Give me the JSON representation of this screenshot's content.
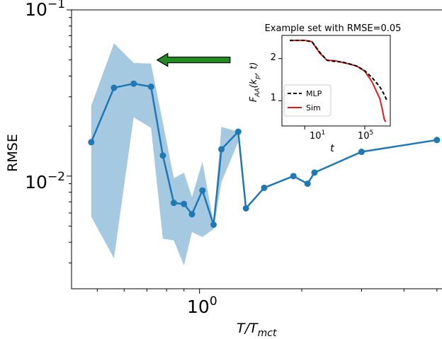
{
  "chart_data": [
    {
      "type": "line",
      "title": "",
      "xlabel_parts": {
        "main": "T/T",
        "sub": "mct"
      },
      "ylabel": "RMSE",
      "xscale": "log",
      "yscale": "log",
      "xlim": [
        0.42,
        5.2
      ],
      "ylim": [
        0.0021,
        0.1
      ],
      "grid": false,
      "x_ticks": [
        {
          "base": "10",
          "exp": "0",
          "value": 1
        }
      ],
      "y_ticks": [
        {
          "base": "10",
          "exp": "−1",
          "value": 0.1
        },
        {
          "base": "10",
          "exp": "−2",
          "value": 0.01
        }
      ],
      "colors": {
        "line": "#1f77b4",
        "band": "#a6c9e2",
        "arrow": "#228b22"
      },
      "series": [
        {
          "x": [
            0.48,
            0.56,
            0.64,
            0.72,
            0.78,
            0.84,
            0.9,
            0.95,
            1.02,
            1.1,
            1.16,
            1.3,
            1.37,
            1.55,
            1.89,
            2.08,
            2.18,
            3.0,
            5.0
          ],
          "y": [
            0.016,
            0.034,
            0.036,
            0.0345,
            0.0133,
            0.0069,
            0.0068,
            0.0059,
            0.0082,
            0.0051,
            0.0145,
            0.0185,
            0.0064,
            0.0085,
            0.01,
            0.009,
            0.0105,
            0.014,
            0.0165
          ]
        }
      ],
      "band": {
        "x": [
          0.48,
          0.56,
          0.64,
          0.72,
          0.78,
          0.84,
          0.9,
          0.95,
          1.02,
          1.1,
          1.16,
          1.3
        ],
        "lower": [
          0.0057,
          0.0032,
          0.0226,
          0.0195,
          0.0042,
          0.0041,
          0.0029,
          0.0046,
          0.0043,
          0.0048,
          0.0092,
          0.016
        ],
        "upper": [
          0.0265,
          0.063,
          0.048,
          0.0475,
          0.021,
          0.0097,
          0.0105,
          0.0075,
          0.0122,
          0.0052,
          0.0198,
          0.0185
        ]
      },
      "arrow": {
        "from": {
          "x": 1.23,
          "y": 0.05
        },
        "to": {
          "x": 0.75,
          "y": 0.05
        }
      }
    },
    {
      "type": "line",
      "title": "Example set with RMSE=0.05",
      "xlabel": "t",
      "ylabel_parts": {
        "main": "F",
        "sub": "AA",
        "arg": "(k",
        "argsub": "p",
        "argend": ", t)"
      },
      "xscale": "log",
      "xlim": [
        0.3,
        5000000.0
      ],
      "ylim": [
        0.4,
        2.55
      ],
      "x_ticks": [
        {
          "base": "10",
          "exp": "1",
          "value": 10
        },
        {
          "base": "10",
          "exp": "5",
          "value": 100000
        }
      ],
      "y_ticks": [
        {
          "label": "1",
          "value": 1
        },
        {
          "label": "2",
          "value": 2
        }
      ],
      "legend": {
        "position": "lower-left"
      },
      "series": [
        {
          "name": "MLP",
          "style": "dashed",
          "color": "#000000",
          "t": [
            1,
            10,
            30,
            100,
            300,
            1000,
            3000,
            10000,
            30000,
            100000,
            300000,
            1000000,
            2000000,
            3000000
          ],
          "y": [
            2.43,
            2.43,
            2.4,
            2.15,
            1.96,
            1.93,
            1.92,
            1.87,
            1.82,
            1.71,
            1.55,
            1.33,
            1.14,
            1.0
          ]
        },
        {
          "name": "Sim",
          "style": "solid",
          "color": "#e31a1c",
          "t": [
            1,
            10,
            30,
            100,
            300,
            1000,
            3000,
            10000,
            30000,
            100000,
            300000,
            1000000,
            1500000,
            2000000,
            2500000
          ],
          "y": [
            2.43,
            2.43,
            2.4,
            2.13,
            1.96,
            1.95,
            1.91,
            1.87,
            1.82,
            1.7,
            1.45,
            1.05,
            0.78,
            0.55,
            0.5
          ]
        }
      ]
    }
  ]
}
